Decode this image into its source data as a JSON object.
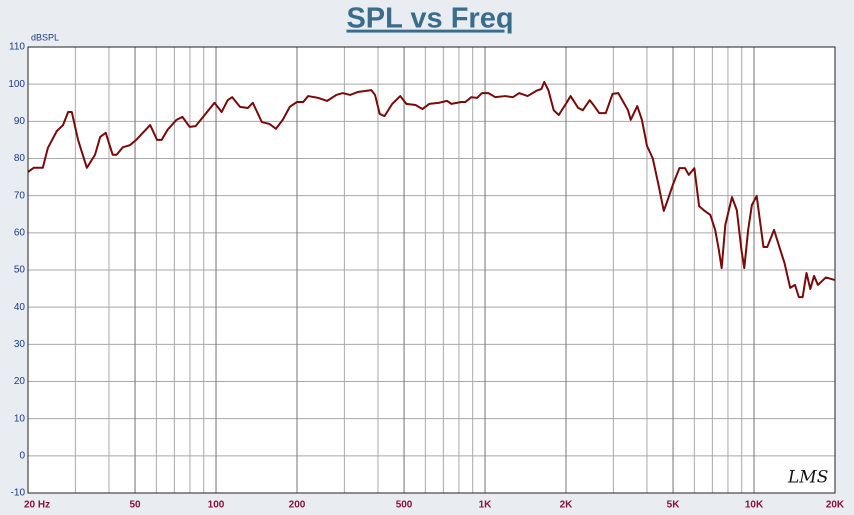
{
  "chart_data": {
    "type": "line",
    "title": "SPL vs Freq",
    "ylabel": "dBSPL",
    "annotation": "LMS",
    "xscale": "log",
    "grid": true,
    "minor_grid": true,
    "color": "#7a0a0a",
    "xlim": [
      20,
      20000
    ],
    "ylim": [
      -10,
      110
    ],
    "xticks": [
      {
        "value": 20,
        "label": "20 Hz"
      },
      50,
      100,
      200,
      500,
      {
        "value": 1000,
        "label": "1K"
      },
      {
        "value": 2000,
        "label": "2K"
      },
      {
        "value": 5000,
        "label": "5K"
      },
      {
        "value": 10000,
        "label": "10K"
      },
      {
        "value": 20000,
        "label": "20K"
      }
    ],
    "yticks": [
      -10,
      0,
      10,
      20,
      30,
      40,
      50,
      60,
      70,
      80,
      90,
      100,
      110
    ],
    "x": [
      20,
      21,
      22.7,
      23.7,
      25.6,
      27,
      28.2,
      29.1,
      30.7,
      33.1,
      35.5,
      37.1,
      38.9,
      41.3,
      42.7,
      45,
      47.9,
      50.5,
      53.6,
      56.9,
      60.4,
      62.8,
      66,
      71.3,
      75,
      79.8,
      84,
      91.9,
      98.7,
      104.9,
      110.5,
      114.8,
      122.8,
      131.4,
      137,
      148,
      158,
      167,
      177,
      188,
      200,
      211,
      220,
      240,
      259,
      280,
      296,
      315,
      337,
      360,
      378,
      390,
      406,
      423,
      452,
      484,
      510,
      552,
      585,
      621,
      675,
      722,
      750,
      816,
      845,
      889,
      934,
      974,
      1030,
      1093,
      1190,
      1270,
      1340,
      1440,
      1550,
      1620,
      1660,
      1720,
      1800,
      1880,
      2010,
      2080,
      2220,
      2310,
      2450,
      2530,
      2660,
      2810,
      2980,
      3130,
      3400,
      3480,
      3680,
      3830,
      4000,
      4200,
      4400,
      4620,
      4780,
      4990,
      5280,
      5540,
      5720,
      6000,
      6250,
      6500,
      6880,
      7170,
      7400,
      7580,
      7820,
      8280,
      8630,
      8980,
      9200,
      9510,
      9820,
      10230,
      10840,
      11200,
      11870,
      12460,
      12980,
      13630,
      14200,
      14680,
      15160,
      15670,
      16190,
      16720,
      17280,
      18500,
      20000
    ],
    "values": [
      76.4,
      77.5,
      77.5,
      82.8,
      87.4,
      89,
      92.5,
      92.5,
      85,
      77.5,
      81,
      85.8,
      86.9,
      81,
      81,
      83,
      83.6,
      85,
      87,
      89,
      85,
      85,
      87.7,
      90.4,
      91.2,
      88.5,
      88.7,
      92.2,
      95,
      92.5,
      95.7,
      96.5,
      93.9,
      93.6,
      95,
      89.8,
      89.3,
      88,
      90.4,
      93.9,
      95.2,
      95.2,
      96.8,
      96.3,
      95.5,
      97.1,
      97.6,
      97.1,
      97.9,
      98.2,
      98.4,
      97.1,
      92,
      91.4,
      94.7,
      96.8,
      94.7,
      94.4,
      93.3,
      94.7,
      95,
      95.5,
      94.7,
      95.2,
      95.2,
      96.5,
      96.3,
      97.6,
      97.6,
      96.5,
      96.8,
      96.5,
      97.6,
      96.8,
      98.2,
      98.7,
      100.6,
      98.4,
      93,
      91.7,
      95,
      96.8,
      93.6,
      93,
      95.7,
      94.4,
      92.2,
      92.2,
      97.4,
      97.6,
      93,
      90.4,
      94.1,
      90.4,
      83.4,
      80.1,
      73.4,
      65.9,
      68.9,
      72.9,
      77.4,
      77.4,
      75.6,
      77.4,
      67.2,
      66.1,
      64.8,
      60.8,
      55.4,
      50.5,
      62.1,
      69.6,
      66.1,
      55.4,
      50.5,
      60.8,
      67.5,
      69.9,
      56.2,
      56.2,
      60.8,
      55.9,
      51.9,
      45.2,
      46,
      42.7,
      42.7,
      49.2,
      44.9,
      48.4,
      46,
      48,
      47.3
    ]
  }
}
